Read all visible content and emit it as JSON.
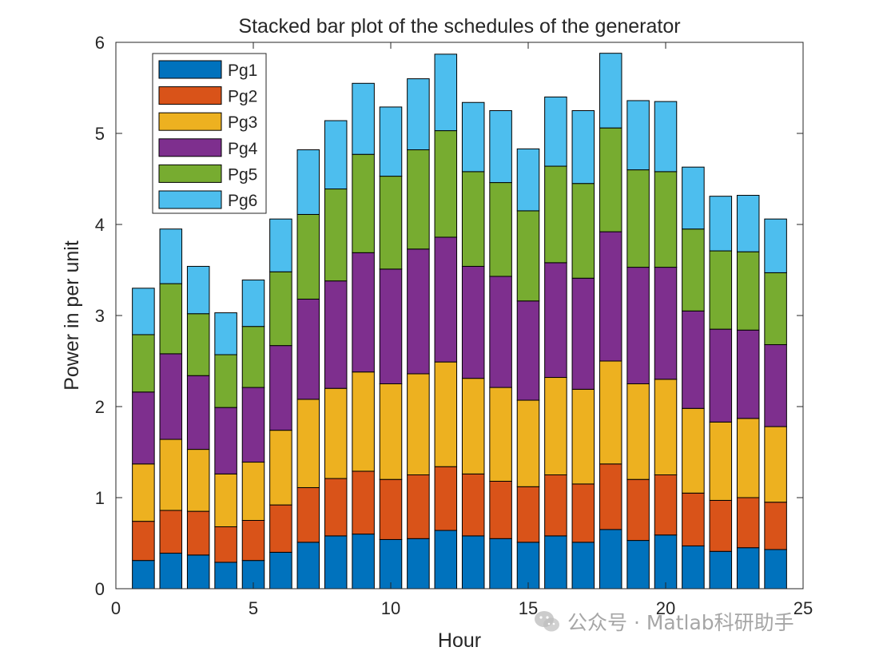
{
  "chart_data": {
    "type": "bar",
    "stacked": true,
    "title": "Stacked bar plot of the schedules of the generator",
    "xlabel": "Hour",
    "ylabel": "Power in per unit",
    "xlim": [
      0,
      25
    ],
    "ylim": [
      0,
      6
    ],
    "xticks": [
      0,
      5,
      10,
      15,
      20,
      25
    ],
    "yticks": [
      0,
      1,
      2,
      3,
      4,
      5,
      6
    ],
    "x": [
      1,
      2,
      3,
      4,
      5,
      6,
      7,
      8,
      9,
      10,
      11,
      12,
      13,
      14,
      15,
      16,
      17,
      18,
      19,
      20,
      21,
      22,
      23,
      24
    ],
    "legend_position": "top-left",
    "series": [
      {
        "name": "Pg1",
        "color": "#0072BD",
        "values": [
          0.31,
          0.39,
          0.37,
          0.29,
          0.31,
          0.4,
          0.51,
          0.58,
          0.6,
          0.54,
          0.55,
          0.64,
          0.58,
          0.55,
          0.51,
          0.58,
          0.51,
          0.65,
          0.53,
          0.59,
          0.47,
          0.41,
          0.45,
          0.43
        ]
      },
      {
        "name": "Pg2",
        "color": "#D95319",
        "values": [
          0.43,
          0.47,
          0.48,
          0.39,
          0.44,
          0.52,
          0.6,
          0.63,
          0.69,
          0.66,
          0.7,
          0.7,
          0.68,
          0.63,
          0.61,
          0.67,
          0.64,
          0.72,
          0.67,
          0.66,
          0.58,
          0.56,
          0.55,
          0.52
        ]
      },
      {
        "name": "Pg3",
        "color": "#EDB120",
        "values": [
          0.63,
          0.78,
          0.68,
          0.58,
          0.64,
          0.82,
          0.97,
          0.99,
          1.09,
          1.05,
          1.11,
          1.15,
          1.05,
          1.03,
          0.95,
          1.07,
          1.04,
          1.13,
          1.05,
          1.05,
          0.93,
          0.86,
          0.87,
          0.83
        ]
      },
      {
        "name": "Pg4",
        "color": "#7E2F8E",
        "values": [
          0.79,
          0.94,
          0.81,
          0.73,
          0.82,
          0.93,
          1.1,
          1.18,
          1.31,
          1.26,
          1.37,
          1.37,
          1.23,
          1.22,
          1.09,
          1.26,
          1.22,
          1.42,
          1.28,
          1.23,
          1.07,
          1.02,
          0.97,
          0.9
        ]
      },
      {
        "name": "Pg5",
        "color": "#77AC30",
        "values": [
          0.63,
          0.77,
          0.68,
          0.58,
          0.67,
          0.81,
          0.93,
          1.01,
          1.08,
          1.02,
          1.09,
          1.17,
          1.04,
          1.03,
          0.99,
          1.06,
          1.04,
          1.14,
          1.07,
          1.05,
          0.9,
          0.86,
          0.86,
          0.79
        ]
      },
      {
        "name": "Pg6",
        "color": "#4DBEEE",
        "values": [
          0.51,
          0.6,
          0.52,
          0.46,
          0.51,
          0.58,
          0.71,
          0.75,
          0.78,
          0.76,
          0.78,
          0.84,
          0.76,
          0.79,
          0.68,
          0.76,
          0.8,
          0.82,
          0.76,
          0.77,
          0.68,
          0.6,
          0.62,
          0.59
        ]
      }
    ]
  },
  "watermark": {
    "text": "公众号 · Matlab科研助手",
    "icon": "wechat-icon"
  }
}
